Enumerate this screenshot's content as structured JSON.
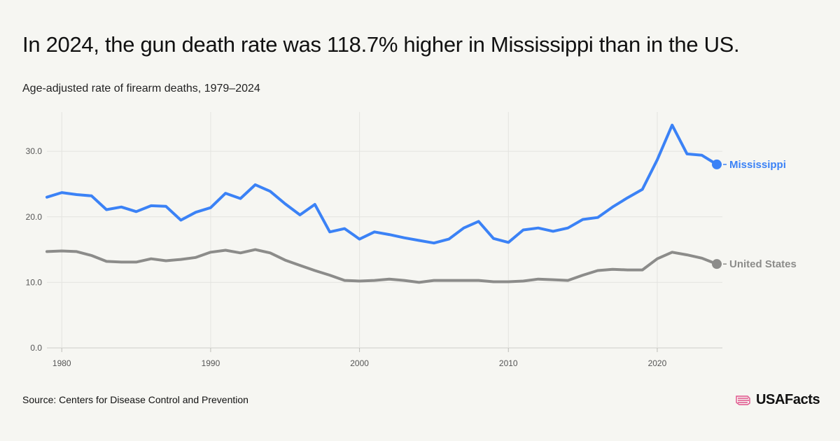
{
  "header": {
    "title": "In 2024, the gun death rate was 118.7% higher in Mississippi than in the US.",
    "subtitle": "Age-adjusted rate of firearm deaths, 1979–2024"
  },
  "footer": {
    "source": "Source: Centers for Disease Control and Prevention",
    "logo_text": "USAFacts"
  },
  "colors": {
    "mississippi": "#3b82f6",
    "united_states": "#8c8c8a",
    "grid": "#e4e4e0",
    "tick_text": "#555555"
  },
  "chart_data": {
    "type": "line",
    "title": "",
    "xlabel": "",
    "ylabel": "",
    "xlim": [
      1979,
      2024
    ],
    "ylim": [
      0,
      36
    ],
    "x_ticks": [
      1980,
      1990,
      2000,
      2010,
      2020
    ],
    "x_tick_labels": [
      "1980",
      "1990",
      "2000",
      "2010",
      "2020"
    ],
    "y_ticks": [
      0,
      10,
      20,
      30
    ],
    "y_tick_labels": [
      "0.0",
      "10.0",
      "20.0",
      "30.0"
    ],
    "grid": true,
    "legend": "end-of-line labels",
    "x": [
      1979,
      1980,
      1981,
      1982,
      1983,
      1984,
      1985,
      1986,
      1987,
      1988,
      1989,
      1990,
      1991,
      1992,
      1993,
      1994,
      1995,
      1996,
      1997,
      1998,
      1999,
      2000,
      2001,
      2002,
      2003,
      2004,
      2005,
      2006,
      2007,
      2008,
      2009,
      2010,
      2011,
      2012,
      2013,
      2014,
      2015,
      2016,
      2017,
      2018,
      2019,
      2020,
      2021,
      2022,
      2023,
      2024
    ],
    "series": [
      {
        "name": "Mississippi",
        "color": "#3b82f6",
        "values": [
          23.0,
          23.7,
          23.4,
          23.2,
          21.1,
          21.5,
          20.8,
          21.7,
          21.6,
          19.5,
          20.7,
          21.4,
          23.6,
          22.8,
          24.9,
          23.9,
          22.0,
          20.3,
          21.9,
          17.7,
          18.2,
          16.6,
          17.7,
          17.3,
          16.8,
          16.4,
          16.0,
          16.6,
          18.3,
          19.3,
          16.7,
          16.1,
          18.0,
          18.3,
          17.8,
          18.3,
          19.6,
          19.9,
          21.5,
          22.9,
          24.2,
          28.7,
          34.0,
          29.6,
          29.4,
          28.0
        ]
      },
      {
        "name": "United States",
        "color": "#8c8c8a",
        "values": [
          14.7,
          14.8,
          14.7,
          14.1,
          13.2,
          13.1,
          13.1,
          13.6,
          13.3,
          13.5,
          13.8,
          14.6,
          14.9,
          14.5,
          15.0,
          14.5,
          13.4,
          12.6,
          11.8,
          11.1,
          10.3,
          10.2,
          10.3,
          10.5,
          10.3,
          10.0,
          10.3,
          10.3,
          10.3,
          10.3,
          10.1,
          10.1,
          10.2,
          10.5,
          10.4,
          10.3,
          11.1,
          11.8,
          12.0,
          11.9,
          11.9,
          13.6,
          14.6,
          14.2,
          13.7,
          12.8
        ]
      }
    ]
  }
}
